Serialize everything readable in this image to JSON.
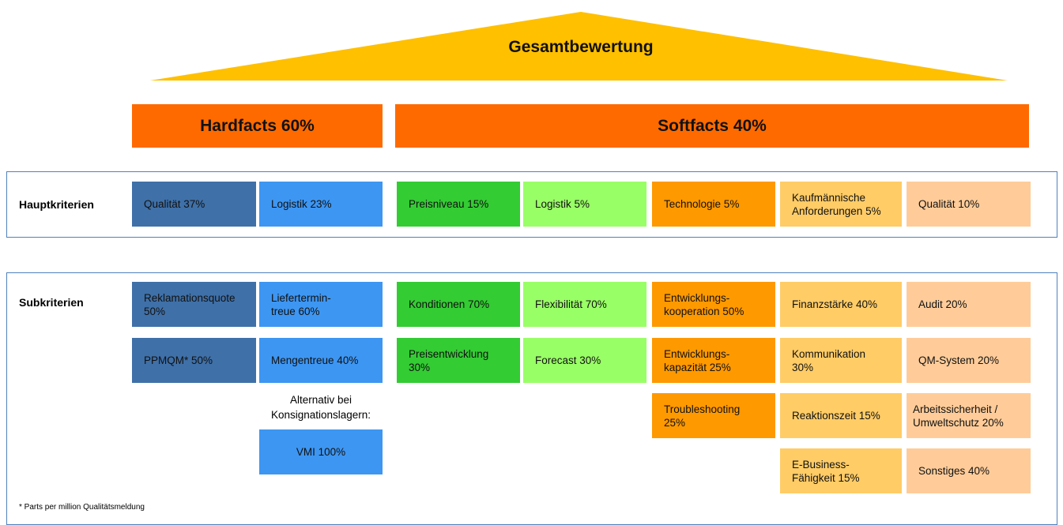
{
  "title": "Gesamtbewertung",
  "groups": [
    {
      "label": "Hardfacts  60%",
      "color": "#FF6A00"
    },
    {
      "label": "Softfacts  40%",
      "color": "#FF6A00"
    }
  ],
  "hauptkriterien": {
    "label": "Hauptkriterien",
    "items": [
      {
        "lines": [
          "Qualität 37%"
        ],
        "color": "#3F70A8"
      },
      {
        "lines": [
          "Logistik  23%"
        ],
        "color": "#3D96F2"
      },
      {
        "lines": [
          "Preisniveau  15%"
        ],
        "color": "#33CC33"
      },
      {
        "lines": [
          "Logistik  5%"
        ],
        "color": "#99FF66"
      },
      {
        "lines": [
          "Technologie  5%"
        ],
        "color": "#FF9900"
      },
      {
        "lines": [
          "Kaufmännische",
          "Anforderungen  5%"
        ],
        "color": "#FFCC66"
      },
      {
        "lines": [
          "Qualität  10%"
        ],
        "color": "#FFCC99"
      }
    ]
  },
  "subkriterien": {
    "label": "Subkriterien",
    "columns": [
      {
        "color": "#3F70A8",
        "cells": [
          {
            "lines": [
              "Reklamationsquote",
              "50%"
            ]
          },
          {
            "lines": [
              "PPMQM*   50%"
            ]
          }
        ]
      },
      {
        "color": "#3D96F2",
        "cells": [
          {
            "lines": [
              "Liefertermin-",
              "treue  60%"
            ]
          },
          {
            "lines": [
              "Mengentreue 40%"
            ]
          }
        ],
        "alternative": {
          "note": [
            "Alternativ bei",
            "Konsignationslagern:"
          ],
          "lines": [
            "VMI 100%"
          ]
        }
      },
      {
        "color": "#33CC33",
        "cells": [
          {
            "lines": [
              "Konditionen  70%"
            ]
          },
          {
            "lines": [
              "Preisentwicklung",
              "30%"
            ]
          }
        ]
      },
      {
        "color": "#99FF66",
        "cells": [
          {
            "lines": [
              "Flexibilität  70%"
            ]
          },
          {
            "lines": [
              "Forecast 30%"
            ]
          }
        ]
      },
      {
        "color": "#FF9900",
        "cells": [
          {
            "lines": [
              "Entwicklungs-",
              "kooperation  50%"
            ]
          },
          {
            "lines": [
              "Entwicklungs-",
              "kapazität  25%"
            ]
          },
          {
            "lines": [
              "Troubleshooting",
              "25%"
            ]
          }
        ]
      },
      {
        "color": "#FFCC66",
        "cells": [
          {
            "lines": [
              "Finanzstärke  40%"
            ]
          },
          {
            "lines": [
              "Kommunikation",
              "30%"
            ]
          },
          {
            "lines": [
              "Reaktionszeit  15%"
            ]
          },
          {
            "lines": [
              "E-Business-",
              "Fähigkeit  15%"
            ]
          }
        ]
      },
      {
        "color": "#FFCC99",
        "cells": [
          {
            "lines": [
              "Audit  20%"
            ]
          },
          {
            "lines": [
              "QM-System  20%"
            ]
          },
          {
            "lines": [
              "Arbeitssicherheit /",
              "Umweltschutz 20%"
            ]
          },
          {
            "lines": [
              "Sonstiges  40%"
            ]
          }
        ]
      }
    ]
  },
  "footnote": "* Parts per million Qualitätsmeldung"
}
